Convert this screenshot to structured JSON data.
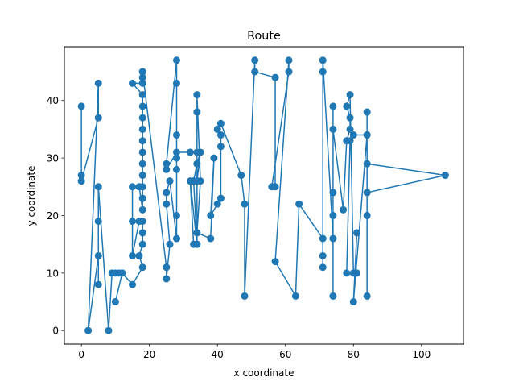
{
  "chart_data": {
    "type": "line",
    "title": "Route",
    "xlabel": "x coordinate",
    "ylabel": "y coordinate",
    "xlim": [
      -5,
      112.35
    ],
    "ylim": [
      -2.35,
      49.35
    ],
    "xticks": [
      0,
      20,
      40,
      60,
      80,
      100
    ],
    "yticks": [
      0,
      10,
      20,
      30,
      40
    ],
    "grid": false,
    "legend": "none",
    "series_color": "#1f77b4",
    "marker": "circle",
    "x": [
      0,
      0,
      0,
      5,
      5,
      2,
      5,
      5,
      5,
      5,
      8,
      9,
      10,
      11,
      12,
      10,
      12,
      15,
      18,
      17,
      18,
      18,
      18,
      17,
      15,
      15,
      15,
      17,
      18,
      18,
      18,
      18,
      18,
      18,
      18,
      18,
      18,
      18,
      18,
      15,
      18,
      18,
      18,
      18,
      25,
      25,
      26,
      25,
      25,
      26,
      28,
      28,
      28,
      28,
      28,
      28,
      28,
      25,
      25,
      28,
      32,
      34,
      34,
      33,
      34,
      35,
      34,
      33,
      34,
      32,
      33,
      34,
      34,
      34,
      35,
      34,
      38,
      39,
      38,
      40,
      41,
      41,
      41,
      40,
      41,
      47,
      48,
      48,
      51,
      51,
      57,
      57,
      56,
      61,
      61,
      57,
      63,
      64,
      71,
      71,
      71,
      71,
      71,
      74,
      74,
      74,
      74,
      74,
      74,
      77,
      78,
      78,
      79,
      79,
      78,
      79,
      80,
      81,
      78,
      79,
      80,
      84,
      84,
      84,
      107,
      84,
      84,
      84,
      84,
      80,
      81
    ],
    "y": [
      39,
      27,
      26,
      37,
      43,
      0,
      13,
      8,
      19,
      25,
      0,
      10,
      10,
      10,
      10,
      5,
      10,
      8,
      11,
      13,
      15,
      17,
      19,
      19,
      13,
      19,
      25,
      25,
      21,
      23,
      25,
      27,
      29,
      31,
      33,
      35,
      37,
      39,
      41,
      43,
      43,
      45,
      44,
      45,
      11,
      9,
      15,
      22,
      24,
      26,
      16,
      20,
      28,
      30,
      34,
      43,
      47,
      29,
      28,
      31,
      31,
      31,
      29,
      26,
      29,
      31,
      26,
      26,
      15,
      26,
      15,
      15,
      38,
      41,
      26,
      17,
      16,
      30,
      20,
      22,
      23,
      32,
      34,
      35,
      36,
      27,
      22,
      6,
      47,
      45,
      44,
      25,
      25,
      45,
      47,
      12,
      6,
      22,
      16,
      11,
      13,
      45,
      47,
      16,
      6,
      20,
      24,
      39,
      35,
      21,
      33,
      33,
      35,
      37,
      39,
      41,
      10,
      10,
      10,
      33,
      34,
      34,
      38,
      29,
      27,
      24,
      20,
      6,
      34,
      5,
      17
    ]
  }
}
